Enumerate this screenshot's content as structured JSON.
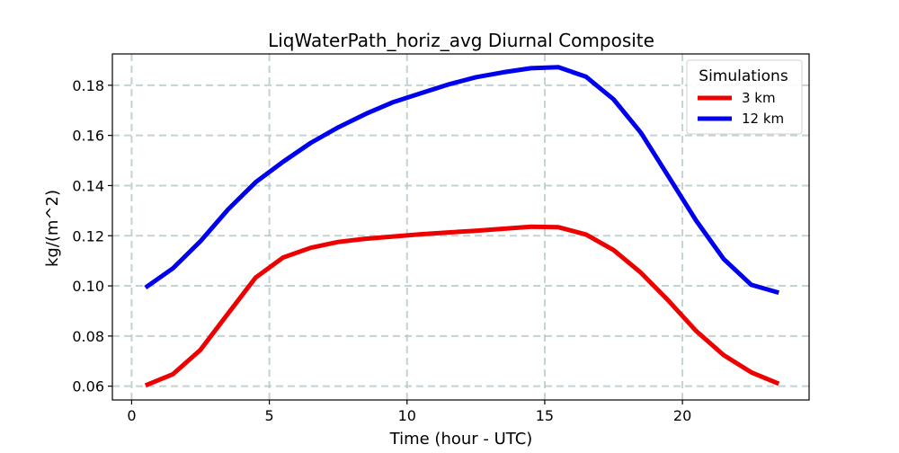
{
  "chart_data": {
    "type": "line",
    "title": "LiqWaterPath_horiz_avg Diurnal Composite",
    "xlabel": "Time (hour - UTC)",
    "ylabel": "kg/(m^2)",
    "xlim": [
      -0.7,
      24.6
    ],
    "ylim": [
      0.0545,
      0.1925
    ],
    "xticks": [
      0,
      5,
      10,
      15,
      20
    ],
    "xtick_labels": [
      "0",
      "5",
      "10",
      "15",
      "20"
    ],
    "yticks": [
      0.06,
      0.08,
      0.1,
      0.12,
      0.14,
      0.16,
      0.18
    ],
    "ytick_labels": [
      "0.06",
      "0.08",
      "0.10",
      "0.12",
      "0.14",
      "0.16",
      "0.18"
    ],
    "grid": true,
    "legend": {
      "title": "Simulations",
      "placement": "top-right"
    },
    "x": [
      0.5,
      1.5,
      2.5,
      3.5,
      4.5,
      5.5,
      6.5,
      7.5,
      8.5,
      9.5,
      10.5,
      11.5,
      12.5,
      13.5,
      14.5,
      15.5,
      16.5,
      17.5,
      18.5,
      19.5,
      20.5,
      21.5,
      22.5,
      23.5
    ],
    "series": [
      {
        "name": "3 km",
        "color": "#ee0000",
        "values": [
          0.0603,
          0.0648,
          0.0745,
          0.089,
          0.1033,
          0.1113,
          0.1152,
          0.1175,
          0.1188,
          0.1197,
          0.1206,
          0.1213,
          0.122,
          0.1228,
          0.1236,
          0.1234,
          0.1205,
          0.1143,
          0.1052,
          0.094,
          0.082,
          0.0724,
          0.0655,
          0.061
        ]
      },
      {
        "name": "12 km",
        "color": "#0000ee",
        "values": [
          0.0993,
          0.107,
          0.1178,
          0.1305,
          0.1413,
          0.1495,
          0.157,
          0.1632,
          0.1686,
          0.1733,
          0.1768,
          0.1803,
          0.1832,
          0.1852,
          0.1868,
          0.1872,
          0.1834,
          0.1744,
          0.161,
          0.1435,
          0.126,
          0.1107,
          0.1004,
          0.0973
        ]
      }
    ]
  }
}
